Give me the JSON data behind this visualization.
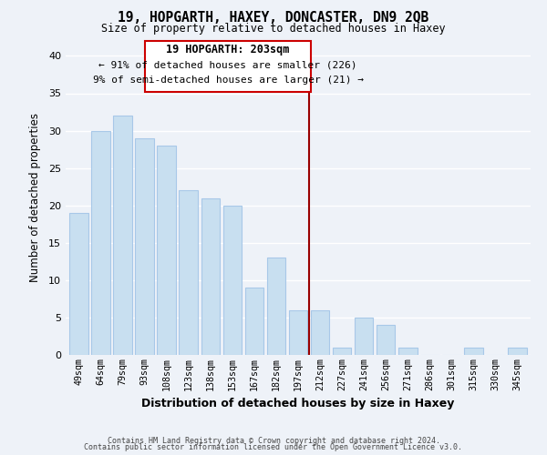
{
  "title1": "19, HOPGARTH, HAXEY, DONCASTER, DN9 2QB",
  "title2": "Size of property relative to detached houses in Haxey",
  "xlabel": "Distribution of detached houses by size in Haxey",
  "ylabel": "Number of detached properties",
  "bar_labels": [
    "49sqm",
    "64sqm",
    "79sqm",
    "93sqm",
    "108sqm",
    "123sqm",
    "138sqm",
    "153sqm",
    "167sqm",
    "182sqm",
    "197sqm",
    "212sqm",
    "227sqm",
    "241sqm",
    "256sqm",
    "271sqm",
    "286sqm",
    "301sqm",
    "315sqm",
    "330sqm",
    "345sqm"
  ],
  "bar_values": [
    19,
    30,
    32,
    29,
    28,
    22,
    21,
    20,
    9,
    13,
    6,
    6,
    1,
    5,
    4,
    1,
    0,
    0,
    1,
    0,
    1
  ],
  "bar_color": "#c8dff0",
  "bar_edgecolor": "#a8c8e8",
  "reference_line_x": 10.5,
  "reference_line_label": "19 HOPGARTH: 203sqm",
  "annotation_line1": "← 91% of detached houses are smaller (226)",
  "annotation_line2": "9% of semi-detached houses are larger (21) →",
  "annotation_box_color": "#ffffff",
  "annotation_box_edgecolor": "#cc0000",
  "ref_line_color": "#990000",
  "ylim": [
    0,
    42
  ],
  "yticks": [
    0,
    5,
    10,
    15,
    20,
    25,
    30,
    35,
    40
  ],
  "footer1": "Contains HM Land Registry data © Crown copyright and database right 2024.",
  "footer2": "Contains public sector information licensed under the Open Government Licence v3.0.",
  "background_color": "#eef2f8",
  "grid_color": "#ffffff"
}
